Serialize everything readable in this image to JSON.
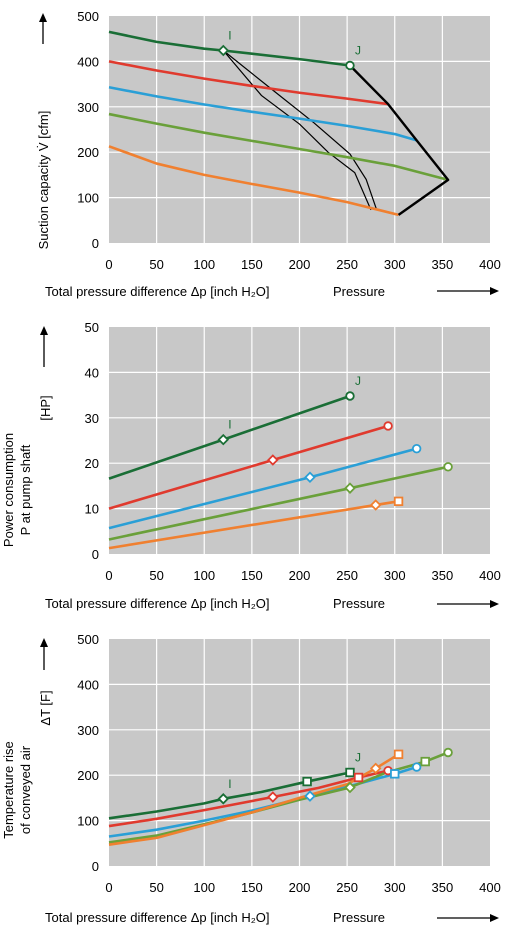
{
  "colors": {
    "plot_bg": "#c8c8c8",
    "grid": "#ffffff",
    "text": "#000000",
    "series": [
      "#1a6e36",
      "#e03a2e",
      "#2a9fd6",
      "#6aa03a",
      "#f08030"
    ],
    "envelope": "#000000"
  },
  "chart_data": [
    {
      "type": "line",
      "ylabel_lines": [
        "Suction capacity V̇",
        "[cfm]"
      ],
      "xlabel": "Total pressure difference Δp [inch H₂O]",
      "x_direction_label": "Pressure",
      "xlim": [
        0,
        400
      ],
      "ylim": [
        0,
        500
      ],
      "xticks": [
        "0",
        "50",
        "100",
        "150",
        "200",
        "250",
        "300",
        "350",
        "400"
      ],
      "yticks": [
        "0",
        "100",
        "200",
        "300",
        "400",
        "500"
      ],
      "grid": true,
      "series": [
        {
          "x": [
            0,
            50,
            100,
            120,
            150,
            200,
            253
          ],
          "y": [
            465,
            443,
            428,
            424,
            417,
            405,
            391
          ]
        },
        {
          "x": [
            0,
            50,
            100,
            150,
            200,
            250,
            293
          ],
          "y": [
            400,
            380,
            362,
            346,
            331,
            318,
            306
          ]
        },
        {
          "x": [
            0,
            50,
            100,
            150,
            200,
            250,
            300,
            323
          ],
          "y": [
            343,
            323,
            305,
            289,
            274,
            258,
            240,
            226
          ]
        },
        {
          "x": [
            0,
            50,
            100,
            150,
            200,
            250,
            300,
            356
          ],
          "y": [
            284,
            263,
            243,
            225,
            207,
            189,
            170,
            139
          ]
        },
        {
          "x": [
            0,
            50,
            100,
            150,
            200,
            250,
            304
          ],
          "y": [
            213,
            175,
            150,
            130,
            111,
            90,
            62
          ]
        }
      ],
      "envelope": {
        "x": [
          304,
          356,
          323,
          293,
          253
        ],
        "y": [
          62,
          139,
          226,
          306,
          391
        ]
      },
      "iso_lines": [
        {
          "x": [
            120,
            170,
            215,
            253,
            270,
            281
          ],
          "y": [
            424,
            340,
            265,
            196,
            140,
            73
          ]
        },
        {
          "x": [
            120,
            160,
            200,
            230,
            258,
            275
          ],
          "y": [
            424,
            325,
            262,
            200,
            155,
            73
          ]
        }
      ],
      "markers": [
        {
          "label": "I",
          "x": 120,
          "y": 424,
          "shape": "diamond",
          "series": 0
        },
        {
          "label": "J",
          "x": 253,
          "y": 391,
          "shape": "circle",
          "series": 0
        }
      ]
    },
    {
      "type": "line",
      "ylabel_lines": [
        "Power consumption",
        "P at pump shaft",
        "[HP]"
      ],
      "xlabel": "Total pressure difference Δp [inch H₂O]",
      "x_direction_label": "Pressure",
      "xlim": [
        0,
        400
      ],
      "ylim": [
        0,
        50
      ],
      "xticks": [
        "0",
        "50",
        "100",
        "150",
        "200",
        "250",
        "300",
        "350",
        "400"
      ],
      "yticks": [
        "0",
        "10",
        "20",
        "30",
        "40",
        "50"
      ],
      "grid": true,
      "series": [
        {
          "x": [
            0,
            120,
            253
          ],
          "y": [
            16.6,
            25.2,
            34.8
          ]
        },
        {
          "x": [
            0,
            172,
            293
          ],
          "y": [
            10.0,
            20.7,
            28.2
          ]
        },
        {
          "x": [
            0,
            211,
            323
          ],
          "y": [
            5.7,
            16.9,
            23.2
          ]
        },
        {
          "x": [
            0,
            253,
            356
          ],
          "y": [
            3.2,
            14.5,
            19.2
          ]
        },
        {
          "x": [
            0,
            280,
            304
          ],
          "y": [
            1.3,
            10.8,
            11.6
          ]
        }
      ],
      "markers": [
        {
          "label": "I",
          "x": 120,
          "y": 25.2,
          "shape": "diamond",
          "series": 0
        },
        {
          "label": "J",
          "x": 253,
          "y": 34.8,
          "shape": "circle",
          "series": 0
        },
        {
          "label": "",
          "x": 172,
          "y": 20.7,
          "shape": "diamond",
          "series": 1
        },
        {
          "label": "",
          "x": 293,
          "y": 28.2,
          "shape": "circle",
          "series": 1
        },
        {
          "label": "",
          "x": 211,
          "y": 16.9,
          "shape": "diamond",
          "series": 2
        },
        {
          "label": "",
          "x": 323,
          "y": 23.2,
          "shape": "circle",
          "series": 2
        },
        {
          "label": "",
          "x": 253,
          "y": 14.5,
          "shape": "diamond",
          "series": 3
        },
        {
          "label": "",
          "x": 356,
          "y": 19.2,
          "shape": "circle",
          "series": 3
        },
        {
          "label": "",
          "x": 280,
          "y": 10.8,
          "shape": "diamond",
          "series": 4
        },
        {
          "label": "",
          "x": 304,
          "y": 11.6,
          "shape": "square",
          "series": 4
        }
      ]
    },
    {
      "type": "line",
      "ylabel_lines": [
        "Temperature rise",
        "of conveyed air",
        "ΔT [F]"
      ],
      "xlabel": "Total pressure difference Δp [inch H₂O]",
      "x_direction_label": "Pressure",
      "xlim": [
        0,
        400
      ],
      "ylim": [
        0,
        500
      ],
      "xticks": [
        "0",
        "50",
        "100",
        "150",
        "200",
        "250",
        "300",
        "350",
        "400"
      ],
      "yticks": [
        "0",
        "100",
        "200",
        "300",
        "400",
        "500"
      ],
      "grid": true,
      "series": [
        {
          "x": [
            0,
            50,
            100,
            120,
            160,
            208,
            253
          ],
          "y": [
            105,
            120,
            138,
            148,
            163,
            186,
            206
          ]
        },
        {
          "x": [
            0,
            50,
            100,
            172,
            220,
            262,
            293
          ],
          "y": [
            88,
            104,
            123,
            152,
            172,
            195,
            210
          ]
        },
        {
          "x": [
            0,
            50,
            100,
            150,
            211,
            260,
            300,
            323
          ],
          "y": [
            65,
            80,
            100,
            122,
            154,
            180,
            203,
            218
          ]
        },
        {
          "x": [
            0,
            50,
            100,
            150,
            200,
            253,
            290,
            332,
            356
          ],
          "y": [
            52,
            67,
            92,
            118,
            146,
            173,
            205,
            230,
            250
          ]
        },
        {
          "x": [
            0,
            50,
            100,
            150,
            200,
            250,
            280,
            304
          ],
          "y": [
            47,
            62,
            90,
            118,
            150,
            180,
            215,
            246
          ]
        }
      ],
      "markers": [
        {
          "label": "I",
          "x": 120,
          "y": 148,
          "shape": "diamond",
          "series": 0
        },
        {
          "label": "",
          "x": 208,
          "y": 186,
          "shape": "square",
          "series": 0
        },
        {
          "label": "J",
          "x": 253,
          "y": 206,
          "shape": "square",
          "series": 0
        },
        {
          "label": "",
          "x": 172,
          "y": 152,
          "shape": "diamond",
          "series": 1
        },
        {
          "label": "",
          "x": 262,
          "y": 195,
          "shape": "square",
          "series": 1
        },
        {
          "label": "",
          "x": 293,
          "y": 210,
          "shape": "circle",
          "series": 1
        },
        {
          "label": "",
          "x": 211,
          "y": 154,
          "shape": "diamond",
          "series": 2
        },
        {
          "label": "",
          "x": 300,
          "y": 203,
          "shape": "square",
          "series": 2
        },
        {
          "label": "",
          "x": 323,
          "y": 218,
          "shape": "circle",
          "series": 2
        },
        {
          "label": "",
          "x": 253,
          "y": 173,
          "shape": "diamond",
          "series": 3
        },
        {
          "label": "",
          "x": 332,
          "y": 230,
          "shape": "square",
          "series": 3
        },
        {
          "label": "",
          "x": 356,
          "y": 250,
          "shape": "circle",
          "series": 3
        },
        {
          "label": "",
          "x": 280,
          "y": 215,
          "shape": "diamond",
          "series": 4
        },
        {
          "label": "",
          "x": 304,
          "y": 246,
          "shape": "square",
          "series": 4
        }
      ]
    }
  ]
}
